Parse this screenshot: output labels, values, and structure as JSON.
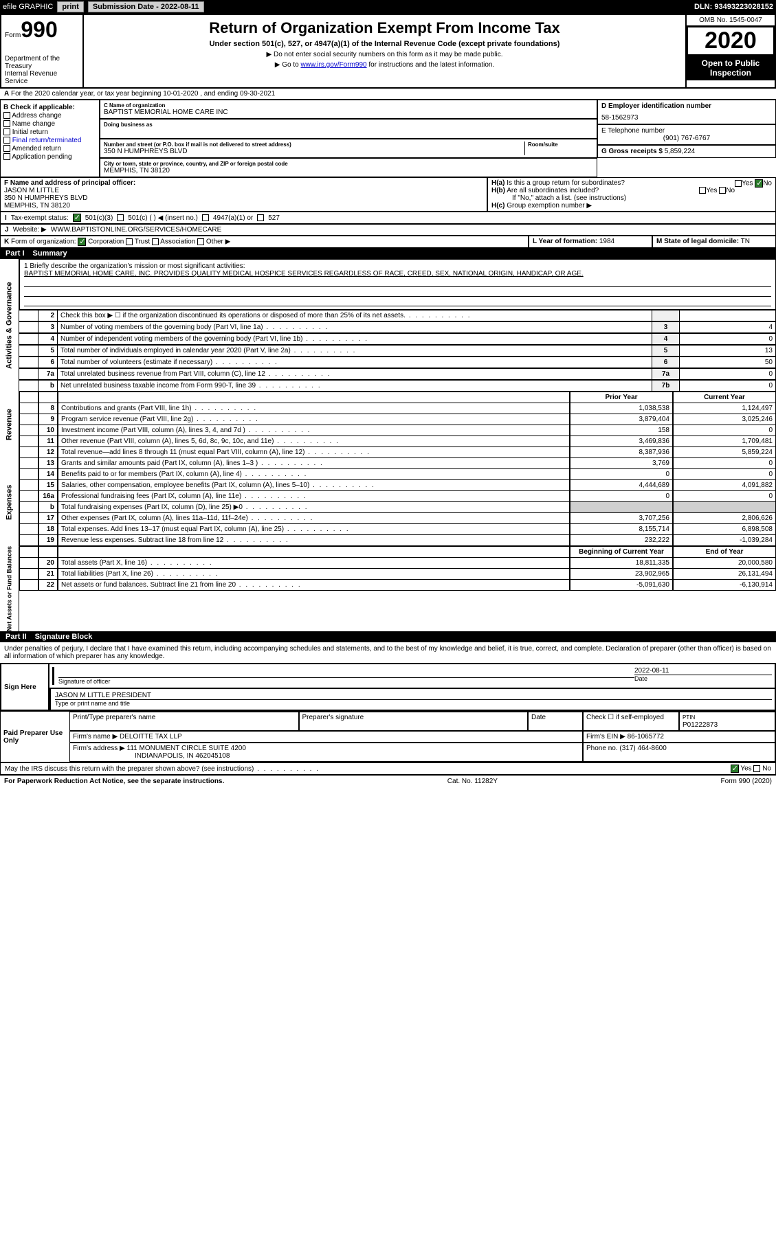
{
  "topbar": {
    "efile": "efile GRAPHIC",
    "print": "print",
    "sub_label": "Submission Date - 2022-08-11",
    "dln": "DLN: 93493223028152"
  },
  "header": {
    "form": "Form",
    "form_num": "990",
    "dept": "Department of the Treasury\nInternal Revenue Service",
    "title": "Return of Organization Exempt From Income Tax",
    "subtitle": "Under section 501(c), 527, or 4947(a)(1) of the Internal Revenue Code (except private foundations)",
    "note1": "▶ Do not enter social security numbers on this form as it may be made public.",
    "note2_pre": "▶ Go to ",
    "note2_link": "www.irs.gov/Form990",
    "note2_post": " for instructions and the latest information.",
    "omb": "OMB No. 1545-0047",
    "year": "2020",
    "open": "Open to Public Inspection"
  },
  "line_a": "For the 2020 calendar year, or tax year beginning 10-01-2020   , and ending 09-30-2021",
  "b": {
    "header": "B Check if applicable:",
    "opts": [
      "Address change",
      "Name change",
      "Initial return",
      "Final return/terminated",
      "Amended return",
      "Application pending"
    ]
  },
  "c": {
    "name_label": "C Name of organization",
    "name": "BAPTIST MEMORIAL HOME CARE INC",
    "dba_label": "Doing business as",
    "addr_label": "Number and street (or P.O. box if mail is not delivered to street address)",
    "addr": "350 N HUMPHREYS BLVD",
    "room_label": "Room/suite",
    "city_label": "City or town, state or province, country, and ZIP or foreign postal code",
    "city": "MEMPHIS, TN  38120"
  },
  "d": {
    "label": "D Employer identification number",
    "val": "58-1562973"
  },
  "e": {
    "label": "E Telephone number",
    "val": "(901) 767-6767"
  },
  "g": {
    "label": "G Gross receipts $",
    "val": "5,859,224"
  },
  "f": {
    "label": "F Name and address of principal officer:",
    "name": "JASON M LITTLE",
    "addr": "350 N HUMPHREYS BLVD",
    "city": "MEMPHIS, TN  38120"
  },
  "h": {
    "a": "Is this a group return for subordinates?",
    "b": "Are all subordinates included?",
    "note": "If \"No,\" attach a list. (see instructions)",
    "c": "Group exemption number ▶",
    "yes": "Yes",
    "no": "No"
  },
  "i": {
    "label": "Tax-exempt status:",
    "o1": "501(c)(3)",
    "o2": "501(c) (  ) ◀ (insert no.)",
    "o3": "4947(a)(1) or",
    "o4": "527"
  },
  "j": {
    "label": "Website: ▶",
    "val": "WWW.BAPTISTONLINE.ORG/SERVICES/HOMECARE"
  },
  "k": {
    "label": "Form of organization:",
    "o1": "Corporation",
    "o2": "Trust",
    "o3": "Association",
    "o4": "Other ▶"
  },
  "l": {
    "label": "L Year of formation:",
    "val": "1984"
  },
  "m": {
    "label": "M State of legal domicile:",
    "val": "TN"
  },
  "part1": {
    "num": "Part I",
    "title": "Summary"
  },
  "mission": {
    "line1_label": "1  Briefly describe the organization's mission or most significant activities:",
    "text": "BAPTIST MEMORIAL HOME CARE, INC. PROVIDES QUALITY MEDICAL HOSPICE SERVICES REGARDLESS OF RACE, CREED, SEX, NATIONAL ORIGIN, HANDICAP, OR AGE."
  },
  "lines_gov": [
    {
      "n": "2",
      "t": "Check this box ▶ ☐  if the organization discontinued its operations or disposed of more than 25% of its net assets.",
      "box": "",
      "v": ""
    },
    {
      "n": "3",
      "t": "Number of voting members of the governing body (Part VI, line 1a)",
      "box": "3",
      "v": "4"
    },
    {
      "n": "4",
      "t": "Number of independent voting members of the governing body (Part VI, line 1b)",
      "box": "4",
      "v": "0"
    },
    {
      "n": "5",
      "t": "Total number of individuals employed in calendar year 2020 (Part V, line 2a)",
      "box": "5",
      "v": "13"
    },
    {
      "n": "6",
      "t": "Total number of volunteers (estimate if necessary)",
      "box": "6",
      "v": "50"
    },
    {
      "n": "7a",
      "t": "Total unrelated business revenue from Part VIII, column (C), line 12",
      "box": "7a",
      "v": "0"
    },
    {
      "n": "b",
      "t": "Net unrelated business taxable income from Form 990-T, line 39",
      "box": "7b",
      "v": "0"
    }
  ],
  "hdr_prior": "Prior Year",
  "hdr_current": "Current Year",
  "sections": {
    "gov": "Activities & Governance",
    "rev": "Revenue",
    "exp": "Expenses",
    "net": "Net Assets or Fund Balances"
  },
  "rev": [
    {
      "n": "8",
      "t": "Contributions and grants (Part VIII, line 1h)",
      "p": "1,038,538",
      "c": "1,124,497"
    },
    {
      "n": "9",
      "t": "Program service revenue (Part VIII, line 2g)",
      "p": "3,879,404",
      "c": "3,025,246"
    },
    {
      "n": "10",
      "t": "Investment income (Part VIII, column (A), lines 3, 4, and 7d )",
      "p": "158",
      "c": "0"
    },
    {
      "n": "11",
      "t": "Other revenue (Part VIII, column (A), lines 5, 6d, 8c, 9c, 10c, and 11e)",
      "p": "3,469,836",
      "c": "1,709,481"
    },
    {
      "n": "12",
      "t": "Total revenue—add lines 8 through 11 (must equal Part VIII, column (A), line 12)",
      "p": "8,387,936",
      "c": "5,859,224"
    }
  ],
  "exp": [
    {
      "n": "13",
      "t": "Grants and similar amounts paid (Part IX, column (A), lines 1–3 )",
      "p": "3,769",
      "c": "0"
    },
    {
      "n": "14",
      "t": "Benefits paid to or for members (Part IX, column (A), line 4)",
      "p": "0",
      "c": "0"
    },
    {
      "n": "15",
      "t": "Salaries, other compensation, employee benefits (Part IX, column (A), lines 5–10)",
      "p": "4,444,689",
      "c": "4,091,882"
    },
    {
      "n": "16a",
      "t": "Professional fundraising fees (Part IX, column (A), line 11e)",
      "p": "0",
      "c": "0"
    },
    {
      "n": "b",
      "t": "Total fundraising expenses (Part IX, column (D), line 25) ▶0",
      "p": "",
      "c": "",
      "shade": true
    },
    {
      "n": "17",
      "t": "Other expenses (Part IX, column (A), lines 11a–11d, 11f–24e)",
      "p": "3,707,256",
      "c": "2,806,626"
    },
    {
      "n": "18",
      "t": "Total expenses. Add lines 13–17 (must equal Part IX, column (A), line 25)",
      "p": "8,155,714",
      "c": "6,898,508"
    },
    {
      "n": "19",
      "t": "Revenue less expenses. Subtract line 18 from line 12",
      "p": "232,222",
      "c": "-1,039,284"
    }
  ],
  "hdr_begin": "Beginning of Current Year",
  "hdr_end": "End of Year",
  "net": [
    {
      "n": "20",
      "t": "Total assets (Part X, line 16)",
      "p": "18,811,335",
      "c": "20,000,580"
    },
    {
      "n": "21",
      "t": "Total liabilities (Part X, line 26)",
      "p": "23,902,965",
      "c": "26,131,494"
    },
    {
      "n": "22",
      "t": "Net assets or fund balances. Subtract line 21 from line 20",
      "p": "-5,091,630",
      "c": "-6,130,914"
    }
  ],
  "part2": {
    "num": "Part II",
    "title": "Signature Block"
  },
  "sig": {
    "penalty": "Under penalties of perjury, I declare that I have examined this return, including accompanying schedules and statements, and to the best of my knowledge and belief, it is true, correct, and complete. Declaration of preparer (other than officer) is based on all information of which preparer has any knowledge.",
    "sign_here": "Sign Here",
    "sig_officer": "Signature of officer",
    "date": "Date",
    "date_val": "2022-08-11",
    "name_title": "JASON M LITTLE  PRESIDENT",
    "type_label": "Type or print name and title"
  },
  "prep": {
    "label": "Paid Preparer Use Only",
    "h1": "Print/Type preparer's name",
    "h2": "Preparer's signature",
    "h3": "Date",
    "h4": "Check ☐ if self-employed",
    "h5_label": "PTIN",
    "h5": "P01222873",
    "firm_name_label": "Firm's name   ▶",
    "firm_name": "DELOITTE TAX LLP",
    "firm_ein_label": "Firm's EIN ▶",
    "firm_ein": "86-1065772",
    "firm_addr_label": "Firm's address ▶",
    "firm_addr": "111 MONUMENT CIRCLE SUITE 4200",
    "firm_addr2": "INDIANAPOLIS, IN  462045108",
    "phone_label": "Phone no.",
    "phone": "(317) 464-8600"
  },
  "discuss": "May the IRS discuss this return with the preparer shown above? (see instructions)",
  "footer": {
    "left": "For Paperwork Reduction Act Notice, see the separate instructions.",
    "mid": "Cat. No. 11282Y",
    "right": "Form 990 (2020)"
  }
}
